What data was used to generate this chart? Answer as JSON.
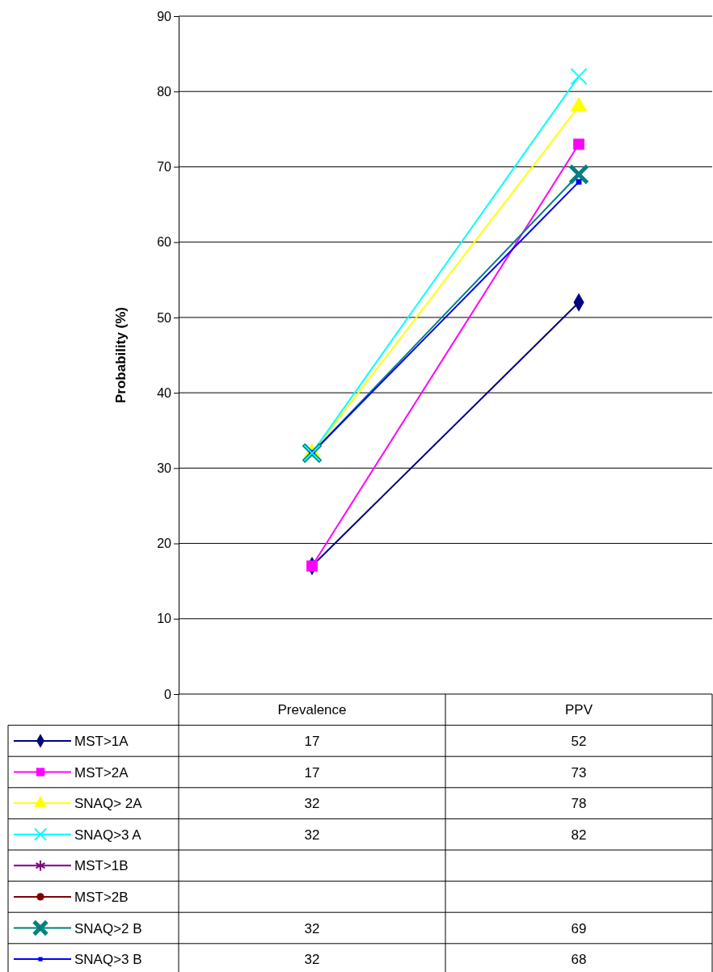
{
  "chart_data": {
    "type": "line",
    "ylabel": "Probability (%)",
    "categories": [
      "Prevalence",
      "PPV"
    ],
    "ylim": [
      0,
      90
    ],
    "yticks": [
      0,
      10,
      20,
      30,
      40,
      50,
      60,
      70,
      80,
      90
    ],
    "grid": "y",
    "legend": "bottom",
    "data_labels": true,
    "line_style": "solid",
    "series": [
      {
        "name": "MST>1A",
        "color": "#000080",
        "marker": "diamond",
        "values": [
          17,
          52
        ]
      },
      {
        "name": "MST>2A",
        "color": "#ff00ff",
        "marker": "square",
        "values": [
          17,
          73
        ]
      },
      {
        "name": "SNAQ> 2A",
        "color": "#ffff00",
        "marker": "triangle",
        "values": [
          32,
          78
        ]
      },
      {
        "name": "SNAQ>3 A",
        "color": "#00ffff",
        "marker": "cross",
        "values": [
          32,
          82
        ]
      },
      {
        "name": "MST>1B",
        "color": "#800080",
        "marker": "star",
        "values": [
          null,
          null
        ]
      },
      {
        "name": "MST>2B",
        "color": "#800000",
        "marker": "circle",
        "values": [
          null,
          null
        ]
      },
      {
        "name": "SNAQ>2 B",
        "color": "#008080",
        "marker": "cross",
        "values": [
          32,
          69
        ]
      },
      {
        "name": "SNAQ>3 B",
        "color": "#0000ff",
        "marker": "square",
        "values": [
          32,
          68
        ]
      }
    ]
  }
}
